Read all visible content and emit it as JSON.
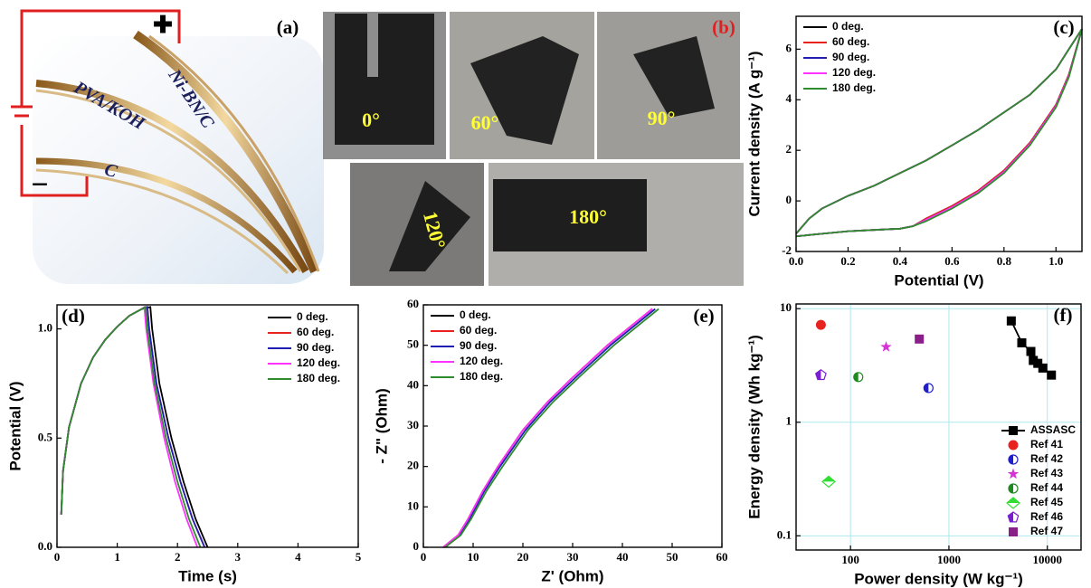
{
  "diagram": {
    "panel": "(a)",
    "labels": [
      "Ni-BN/C",
      "PVA/KOH",
      "C"
    ],
    "plus": "✚",
    "minus": "−"
  },
  "photos": {
    "panel": "(b)",
    "angles": [
      "0°",
      "60°",
      "90°",
      "120°",
      "180°"
    ]
  },
  "chart_data": [
    {
      "type": "line",
      "panel": "(c)",
      "xlabel": "Potential (V)",
      "ylabel": "Current density (A g⁻¹)",
      "xlim": [
        0,
        1.1
      ],
      "ylim": [
        -2,
        7.3
      ],
      "xticks": [
        {
          "value": 0,
          "label": "0.0"
        },
        0.2,
        0.4,
        0.6,
        0.8,
        {
          "value": 1,
          "label": "1.0"
        }
      ],
      "yticks": [
        -2,
        0,
        2,
        4,
        6
      ],
      "legend": "upper left",
      "x": [
        0,
        0.1,
        0.2,
        0.3,
        0.4,
        0.45,
        0.5,
        0.6,
        0.7,
        0.8,
        0.9,
        1.0,
        1.05,
        1.1,
        1.05,
        1.0,
        0.9,
        0.8,
        0.7,
        0.6,
        0.5,
        0.4,
        0.3,
        0.2,
        0.1,
        0.05,
        0
      ],
      "series": [
        {
          "name": "0 deg.",
          "color": "#000000",
          "values": [
            -1.4,
            -1.3,
            -1.2,
            -1.15,
            -1.1,
            -1.0,
            -0.7,
            -0.2,
            0.4,
            1.2,
            2.3,
            3.8,
            5.0,
            6.8,
            6.0,
            5.2,
            4.2,
            3.5,
            2.8,
            2.2,
            1.6,
            1.1,
            0.6,
            0.2,
            -0.3,
            -0.7,
            -1.3
          ]
        },
        {
          "name": "60 deg.",
          "color": "#e8231e",
          "values": [
            -1.4,
            -1.3,
            -1.2,
            -1.15,
            -1.1,
            -1.0,
            -0.7,
            -0.2,
            0.4,
            1.2,
            2.3,
            3.8,
            5.0,
            6.8,
            6.0,
            5.2,
            4.2,
            3.5,
            2.8,
            2.2,
            1.6,
            1.1,
            0.6,
            0.2,
            -0.3,
            -0.7,
            -1.3
          ]
        },
        {
          "name": "90 deg.",
          "color": "#1f1fb4",
          "values": [
            -1.4,
            -1.3,
            -1.2,
            -1.15,
            -1.1,
            -1.0,
            -0.75,
            -0.25,
            0.35,
            1.15,
            2.25,
            3.75,
            4.95,
            6.8,
            6.0,
            5.2,
            4.2,
            3.5,
            2.8,
            2.2,
            1.6,
            1.1,
            0.6,
            0.2,
            -0.3,
            -0.7,
            -1.3
          ]
        },
        {
          "name": "120 deg.",
          "color": "#ff33ff",
          "values": [
            -1.4,
            -1.3,
            -1.2,
            -1.15,
            -1.1,
            -1.0,
            -0.75,
            -0.25,
            0.35,
            1.15,
            2.25,
            3.75,
            4.95,
            6.8,
            6.0,
            5.2,
            4.2,
            3.5,
            2.8,
            2.2,
            1.6,
            1.1,
            0.6,
            0.2,
            -0.3,
            -0.7,
            -1.3
          ]
        },
        {
          "name": "180 deg.",
          "color": "#2e8b2e",
          "values": [
            -1.4,
            -1.3,
            -1.2,
            -1.15,
            -1.1,
            -1.0,
            -0.8,
            -0.3,
            0.3,
            1.1,
            2.2,
            3.7,
            4.9,
            6.8,
            6.0,
            5.2,
            4.2,
            3.5,
            2.8,
            2.2,
            1.6,
            1.1,
            0.6,
            0.2,
            -0.3,
            -0.7,
            -1.3
          ]
        }
      ]
    },
    {
      "type": "line",
      "panel": "(d)",
      "xlabel": "Time (s)",
      "ylabel": "Potential (V)",
      "xlim": [
        0,
        5
      ],
      "ylim": [
        0,
        1.11
      ],
      "xticks": [
        0,
        1,
        2,
        3,
        4,
        5
      ],
      "yticks": [
        {
          "value": 0,
          "label": "0.0"
        },
        0.5,
        {
          "value": 1,
          "label": "1.0"
        }
      ],
      "legend": "upper right",
      "series": [
        {
          "name": "0 deg.",
          "color": "#000000",
          "x": [
            0.07,
            0.1,
            0.2,
            0.4,
            0.6,
            0.8,
            1.0,
            1.2,
            1.4,
            1.55,
            1.58,
            1.7,
            1.9,
            2.1,
            2.3,
            2.5
          ],
          "values": [
            0.15,
            0.35,
            0.55,
            0.75,
            0.87,
            0.95,
            1.01,
            1.06,
            1.09,
            1.1,
            1.0,
            0.75,
            0.5,
            0.3,
            0.13,
            0
          ]
        },
        {
          "name": "60 deg.",
          "color": "#e8231e",
          "x": [
            0.07,
            0.1,
            0.2,
            0.4,
            0.6,
            0.8,
            1.0,
            1.2,
            1.4,
            1.5,
            1.53,
            1.65,
            1.85,
            2.05,
            2.25,
            2.45
          ],
          "values": [
            0.15,
            0.35,
            0.55,
            0.75,
            0.87,
            0.95,
            1.01,
            1.06,
            1.09,
            1.1,
            1.0,
            0.75,
            0.5,
            0.3,
            0.13,
            0
          ]
        },
        {
          "name": "90 deg.",
          "color": "#1f1fb4",
          "x": [
            0.07,
            0.1,
            0.2,
            0.4,
            0.6,
            0.8,
            1.0,
            1.2,
            1.4,
            1.5,
            1.53,
            1.65,
            1.85,
            2.05,
            2.25,
            2.45
          ],
          "values": [
            0.15,
            0.35,
            0.55,
            0.75,
            0.87,
            0.95,
            1.01,
            1.06,
            1.09,
            1.1,
            1.0,
            0.75,
            0.5,
            0.3,
            0.13,
            0
          ]
        },
        {
          "name": "120 deg.",
          "color": "#ff33ff",
          "x": [
            0.07,
            0.1,
            0.2,
            0.4,
            0.6,
            0.8,
            1.0,
            1.2,
            1.4,
            1.45,
            1.48,
            1.6,
            1.78,
            1.96,
            2.15,
            2.33
          ],
          "values": [
            0.15,
            0.35,
            0.55,
            0.75,
            0.87,
            0.95,
            1.01,
            1.06,
            1.09,
            1.1,
            1.0,
            0.75,
            0.5,
            0.3,
            0.13,
            0
          ]
        },
        {
          "name": "180 deg.",
          "color": "#2e8b2e",
          "x": [
            0.07,
            0.1,
            0.2,
            0.4,
            0.6,
            0.8,
            1.0,
            1.2,
            1.4,
            1.47,
            1.5,
            1.62,
            1.81,
            2.0,
            2.19,
            2.38
          ],
          "values": [
            0.15,
            0.35,
            0.55,
            0.75,
            0.87,
            0.95,
            1.01,
            1.06,
            1.09,
            1.1,
            1.0,
            0.75,
            0.5,
            0.3,
            0.13,
            0
          ]
        }
      ]
    },
    {
      "type": "line",
      "panel": "(e)",
      "xlabel": "Z' (Ohm)",
      "ylabel": "- Z\" (Ohm)",
      "xlim": [
        0,
        60
      ],
      "ylim": [
        0,
        60
      ],
      "xticks": [
        0,
        10,
        20,
        30,
        40,
        50,
        60
      ],
      "yticks": [
        0,
        10,
        20,
        30,
        40,
        50,
        60
      ],
      "legend": "upper left",
      "series": [
        {
          "name": "0 deg.",
          "color": "#000000",
          "x": [
            4,
            5,
            7,
            9,
            12,
            15,
            20,
            25,
            30,
            37,
            42,
            46
          ],
          "values": [
            0,
            1,
            3,
            7,
            14,
            20,
            29,
            36,
            42,
            50,
            55,
            59
          ]
        },
        {
          "name": "60 deg.",
          "color": "#e8231e",
          "x": [
            4,
            5,
            7,
            9,
            12,
            15,
            20,
            25,
            30,
            37,
            42,
            46
          ],
          "values": [
            0,
            1,
            3,
            7,
            14,
            20,
            29,
            36,
            42,
            50,
            55,
            59
          ]
        },
        {
          "name": "90 deg.",
          "color": "#1f1fb4",
          "x": [
            4.2,
            5.2,
            7.2,
            9.3,
            12.3,
            15.4,
            20.5,
            25.5,
            30.6,
            37.6,
            42.6,
            46.6
          ],
          "values": [
            0,
            1,
            3,
            7,
            14,
            20,
            29,
            36,
            42,
            50,
            55,
            59
          ]
        },
        {
          "name": "120 deg.",
          "color": "#ff33ff",
          "x": [
            4,
            5,
            7,
            9,
            12,
            15,
            20,
            25,
            30,
            37,
            42,
            46
          ],
          "values": [
            0,
            1,
            3,
            7,
            14,
            20,
            29,
            36,
            42,
            50,
            55,
            59
          ]
        },
        {
          "name": "180 deg.",
          "color": "#2e8b2e",
          "x": [
            4.4,
            5.4,
            7.5,
            9.6,
            12.7,
            15.9,
            21.0,
            26.1,
            31.2,
            38.3,
            43.3,
            47.3
          ],
          "values": [
            0,
            1,
            3,
            7,
            14,
            20,
            29,
            36,
            42,
            50,
            55,
            59
          ]
        }
      ]
    },
    {
      "type": "scatter",
      "panel": "(f)",
      "xlabel": "Power density (W kg⁻¹)",
      "ylabel": "Energy density (Wh kg⁻¹)",
      "xscale": "log",
      "yscale": "log",
      "grid": true,
      "xlim": [
        28,
        22000
      ],
      "ylim": [
        0.075,
        11
      ],
      "xticks": [
        100,
        1000,
        10000
      ],
      "yticks": [
        0.1,
        1,
        10
      ],
      "legend": "lower right",
      "series": [
        {
          "name": "ASSASC",
          "color": "#000000",
          "marker": "square",
          "line": true,
          "x": [
            4300,
            5500,
            6800,
            7200,
            8000,
            9000,
            11000
          ],
          "values": [
            7.8,
            5.0,
            4.2,
            3.5,
            3.3,
            3.0,
            2.6
          ]
        },
        {
          "name": "Ref 41",
          "color": "#e8231e",
          "marker": "circle",
          "line": false,
          "x": [
            50
          ],
          "values": [
            7.2
          ]
        },
        {
          "name": "Ref 42",
          "color": "#1f1fd0",
          "marker": "half-circle",
          "line": false,
          "x": [
            620
          ],
          "values": [
            2.0
          ]
        },
        {
          "name": "Ref 43",
          "color": "#d633d6",
          "marker": "star",
          "line": false,
          "x": [
            230
          ],
          "values": [
            4.6
          ]
        },
        {
          "name": "Ref 44",
          "color": "#1f8a1f",
          "marker": "half-circle",
          "line": false,
          "x": [
            120
          ],
          "values": [
            2.5
          ]
        },
        {
          "name": "Ref 45",
          "color": "#33dd33",
          "marker": "half-diamond",
          "line": false,
          "x": [
            60
          ],
          "values": [
            0.3
          ]
        },
        {
          "name": "Ref 46",
          "color": "#7a1fd0",
          "marker": "half-pentagon",
          "line": false,
          "x": [
            50
          ],
          "values": [
            2.6
          ]
        },
        {
          "name": "Ref 47",
          "color": "#8a1f8a",
          "marker": "square",
          "line": false,
          "x": [
            500
          ],
          "values": [
            5.4
          ]
        }
      ]
    }
  ]
}
